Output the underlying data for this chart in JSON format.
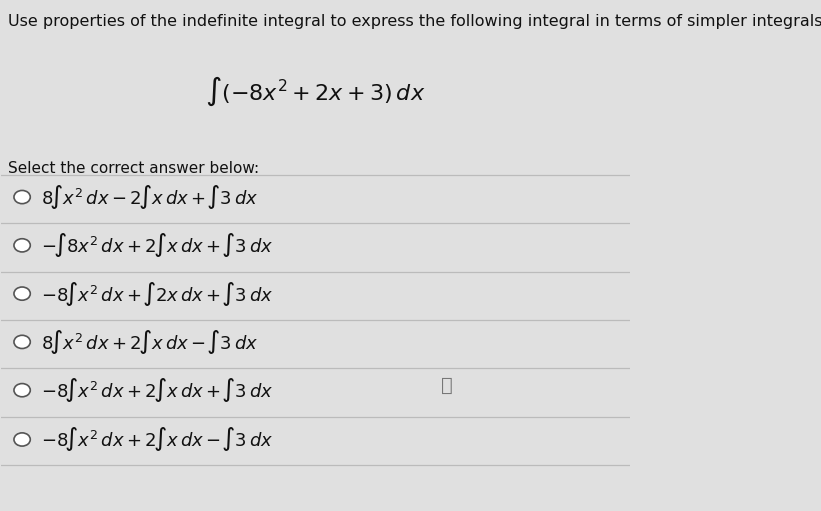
{
  "background_color": "#e0e0e0",
  "title_text": "Use properties of the indefinite integral to express the following integral in terms of simpler integrals:",
  "title_fontsize": 11.5,
  "main_integral": "$\\int (-8x^2 + 2x + 3)\\, dx$",
  "main_integral_fontsize": 16,
  "select_text": "Select the correct answer below:",
  "select_fontsize": 11,
  "option_fontsize": 13,
  "text_color": "#111111",
  "line_color": "#bbbbbb",
  "circle_color": "#ffffff",
  "circle_edge_color": "#555555"
}
